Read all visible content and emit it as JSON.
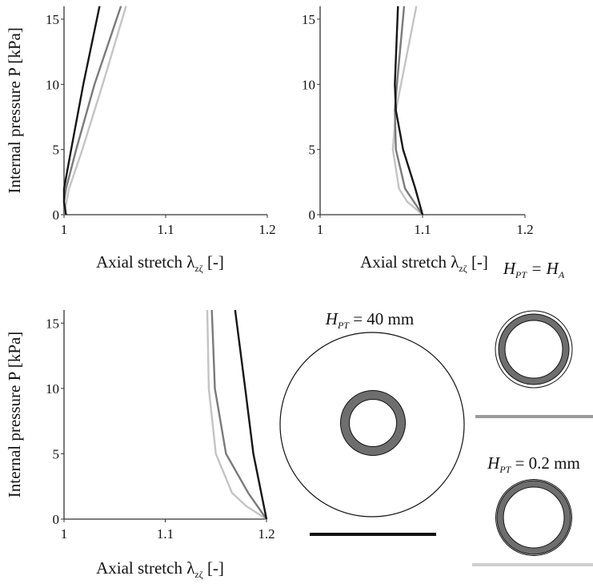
{
  "chart_data": [
    {
      "type": "line",
      "xlabel": [
        "Axial stretch λ",
        "zζ",
        " [-]"
      ],
      "ylabel": "Internal pressure P [kPa]",
      "xlim": [
        1,
        1.2
      ],
      "xticks": [
        1,
        1.1,
        1.2
      ],
      "ylim": [
        0,
        16
      ],
      "yticks": [
        0,
        5,
        10,
        15
      ],
      "series": [
        {
          "color": "#c4c4c4",
          "x": [
            1.0,
            1.005,
            1.018,
            1.038,
            1.061
          ],
          "values": [
            0,
            2,
            5,
            10,
            16
          ]
        },
        {
          "color": "#7a7a7a",
          "x": [
            1.0,
            1.0,
            1.002,
            1.012,
            1.03,
            1.056
          ],
          "values": [
            0,
            1,
            2,
            5,
            10,
            16
          ]
        },
        {
          "color": "#151515",
          "x": [
            1.002,
            1.0,
            1.0,
            1.007,
            1.019,
            1.035
          ],
          "values": [
            0,
            1,
            2,
            5,
            10,
            16
          ]
        }
      ]
    },
    {
      "type": "line",
      "xlabel": [
        "Axial stretch λ",
        "zζ",
        " [-]"
      ],
      "xlim": [
        1,
        1.2
      ],
      "xticks": [
        1,
        1.1,
        1.2
      ],
      "ylim": [
        0,
        16
      ],
      "yticks": [
        0,
        5,
        10,
        15
      ],
      "series": [
        {
          "color": "#c4c4c4",
          "x": [
            1.1,
            1.085,
            1.077,
            1.071,
            1.074,
            1.079,
            1.094
          ],
          "values": [
            0,
            1,
            2,
            5,
            8,
            10,
            16
          ]
        },
        {
          "color": "#7a7a7a",
          "x": [
            1.1,
            1.083,
            1.074,
            1.073,
            1.075,
            1.082
          ],
          "values": [
            0,
            2,
            5,
            8,
            10,
            16
          ]
        },
        {
          "color": "#151515",
          "x": [
            1.1,
            1.093,
            1.081,
            1.074,
            1.073,
            1.076
          ],
          "values": [
            0,
            2,
            5,
            8,
            10,
            16
          ]
        }
      ]
    },
    {
      "type": "line",
      "xlabel": [
        "Axial stretch λ",
        "zζ",
        " [-]"
      ],
      "ylabel": "Internal pressure P [kPa]",
      "xlim": [
        1,
        1.2
      ],
      "xticks": [
        1,
        1.1,
        1.2
      ],
      "ylim": [
        0,
        16
      ],
      "yticks": [
        0,
        5,
        10,
        15
      ],
      "series": [
        {
          "color": "#c4c4c4",
          "x": [
            1.2,
            1.18,
            1.166,
            1.15,
            1.143,
            1.1415
          ],
          "values": [
            0,
            1,
            2,
            5,
            10,
            16
          ]
        },
        {
          "color": "#7a7a7a",
          "x": [
            1.2,
            1.182,
            1.16,
            1.149,
            1.146
          ],
          "values": [
            0,
            2,
            5,
            10,
            16
          ]
        },
        {
          "color": "#151515",
          "x": [
            1.2,
            1.187,
            1.179,
            1.169
          ],
          "values": [
            0,
            5,
            10,
            16
          ]
        }
      ]
    }
  ],
  "diagrams": [
    {
      "label": [
        "H",
        "PT",
        " = 40 mm"
      ]
    },
    {
      "label": [
        "H",
        "PT",
        " = H",
        "A"
      ]
    },
    {
      "label": [
        "H",
        "PT",
        " = 0.2 mm"
      ]
    }
  ]
}
